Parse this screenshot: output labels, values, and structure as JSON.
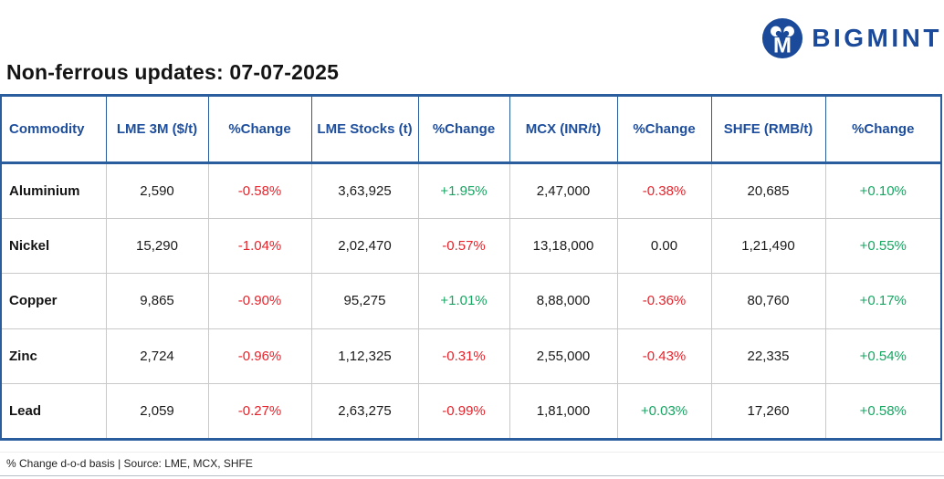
{
  "logo": {
    "brand": "BIGMINT",
    "icon": "two-people-m-circle-icon",
    "brand_color": "#1b4a9b"
  },
  "colors": {
    "brand_navy": "#1b4a9b",
    "header_text_blue": "#1d4d9d",
    "table_border_blue": "#2a5d9e",
    "row_divider_gray": "#c9c9c9",
    "positive_green": "#17a562",
    "negative_red": "#e8232b",
    "neutral_text": "#1a1a1a"
  },
  "chart_data": {
    "type": "table",
    "title": "Non-ferrous updates: 07-07-2025",
    "footnote": "% Change d-o-d basis | Source: LME, MCX, SHFE",
    "columns": [
      "Commodity",
      "LME 3M ($/t)",
      "%Change",
      "LME Stocks (t)",
      "%Change",
      "MCX (INR/t)",
      "%Change",
      "SHFE (RMB/t)",
      "%Change"
    ],
    "rows": [
      {
        "commodity": "Aluminium",
        "values": [
          {
            "v": "2,590",
            "t": "plain"
          },
          {
            "v": "-0.58%",
            "t": "neg"
          },
          {
            "v": "3,63,925",
            "t": "plain"
          },
          {
            "v": "+1.95%",
            "t": "pos"
          },
          {
            "v": "2,47,000",
            "t": "plain"
          },
          {
            "v": "-0.38%",
            "t": "neg"
          },
          {
            "v": "20,685",
            "t": "plain"
          },
          {
            "v": "+0.10%",
            "t": "pos"
          }
        ]
      },
      {
        "commodity": "Nickel",
        "values": [
          {
            "v": "15,290",
            "t": "plain"
          },
          {
            "v": "-1.04%",
            "t": "neg"
          },
          {
            "v": "2,02,470",
            "t": "plain"
          },
          {
            "v": "-0.57%",
            "t": "neg"
          },
          {
            "v": "13,18,000",
            "t": "plain"
          },
          {
            "v": "0.00",
            "t": "neutral"
          },
          {
            "v": "1,21,490",
            "t": "plain"
          },
          {
            "v": "+0.55%",
            "t": "pos"
          }
        ]
      },
      {
        "commodity": "Copper",
        "values": [
          {
            "v": "9,865",
            "t": "plain"
          },
          {
            "v": "-0.90%",
            "t": "neg"
          },
          {
            "v": "95,275",
            "t": "plain"
          },
          {
            "v": "+1.01%",
            "t": "pos"
          },
          {
            "v": "8,88,000",
            "t": "plain"
          },
          {
            "v": "-0.36%",
            "t": "neg"
          },
          {
            "v": "80,760",
            "t": "plain"
          },
          {
            "v": "+0.17%",
            "t": "pos"
          }
        ]
      },
      {
        "commodity": "Zinc",
        "values": [
          {
            "v": "2,724",
            "t": "plain"
          },
          {
            "v": "-0.96%",
            "t": "neg"
          },
          {
            "v": "1,12,325",
            "t": "plain"
          },
          {
            "v": "-0.31%",
            "t": "neg"
          },
          {
            "v": "2,55,000",
            "t": "plain"
          },
          {
            "v": "-0.43%",
            "t": "neg"
          },
          {
            "v": "22,335",
            "t": "plain"
          },
          {
            "v": "+0.54%",
            "t": "pos"
          }
        ]
      },
      {
        "commodity": "Lead",
        "values": [
          {
            "v": "2,059",
            "t": "plain"
          },
          {
            "v": "-0.27%",
            "t": "neg"
          },
          {
            "v": "2,63,275",
            "t": "plain"
          },
          {
            "v": "-0.99%",
            "t": "neg"
          },
          {
            "v": "1,81,000",
            "t": "plain"
          },
          {
            "v": "+0.03%",
            "t": "pos"
          },
          {
            "v": "17,260",
            "t": "plain"
          },
          {
            "v": "+0.58%",
            "t": "pos"
          }
        ]
      }
    ]
  }
}
